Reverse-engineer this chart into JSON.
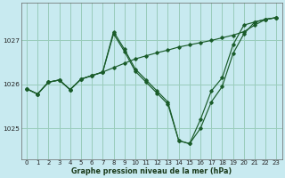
{
  "title": "Graphe pression niveau de la mer (hPa)",
  "background_color": "#c8eaf0",
  "grid_color": "#99ccbb",
  "line_color": "#1a5c2a",
  "xlim": [
    -0.5,
    23.5
  ],
  "ylim": [
    1024.3,
    1027.85
  ],
  "yticks": [
    1025,
    1026,
    1027
  ],
  "xticks": [
    0,
    1,
    2,
    3,
    4,
    5,
    6,
    7,
    8,
    9,
    10,
    11,
    12,
    13,
    14,
    15,
    16,
    17,
    18,
    19,
    20,
    21,
    22,
    23
  ],
  "series1_x": [
    0,
    1,
    2,
    3,
    4,
    5,
    6,
    7,
    8,
    9,
    10,
    11,
    12,
    13,
    14,
    15,
    16,
    17,
    18,
    19,
    20,
    21,
    22,
    23
  ],
  "series1_y": [
    1025.9,
    1025.78,
    1026.05,
    1026.1,
    1025.88,
    1026.12,
    1026.2,
    1026.28,
    1026.38,
    1026.48,
    1026.58,
    1026.65,
    1026.72,
    1026.78,
    1026.85,
    1026.9,
    1026.95,
    1027.0,
    1027.06,
    1027.12,
    1027.2,
    1027.35,
    1027.48,
    1027.52
  ],
  "series2_x": [
    0,
    1,
    2,
    3,
    4,
    5,
    6,
    7,
    8,
    9,
    10,
    11,
    12,
    13,
    14,
    15,
    16,
    17,
    18,
    19,
    20,
    21,
    22,
    23
  ],
  "series2_y": [
    1025.9,
    1025.78,
    1026.05,
    1026.1,
    1025.88,
    1026.12,
    1026.2,
    1026.28,
    1027.2,
    1026.8,
    1026.35,
    1026.1,
    1025.85,
    1025.6,
    1024.72,
    1024.65,
    1025.2,
    1025.85,
    1026.15,
    1026.9,
    1027.35,
    1027.42,
    1027.48,
    1027.52
  ],
  "series3_x": [
    0,
    1,
    2,
    3,
    4,
    5,
    6,
    7,
    8,
    9,
    10,
    11,
    12,
    13,
    14,
    15,
    16,
    17,
    18,
    19,
    20,
    21,
    22,
    23
  ],
  "series3_y": [
    1025.9,
    1025.78,
    1026.05,
    1026.1,
    1025.88,
    1026.12,
    1026.2,
    1026.28,
    1027.15,
    1026.75,
    1026.3,
    1026.05,
    1025.8,
    1025.55,
    1024.72,
    1024.65,
    1025.0,
    1025.6,
    1025.95,
    1026.7,
    1027.15,
    1027.42,
    1027.48,
    1027.52
  ],
  "tick_fontsize": 5.0,
  "xlabel_fontsize": 5.8
}
